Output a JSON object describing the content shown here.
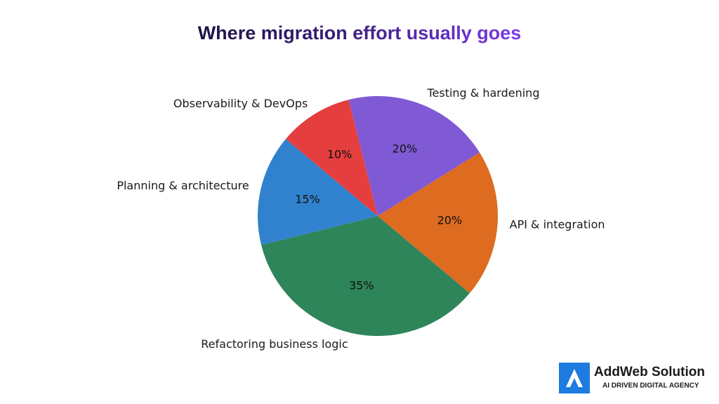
{
  "chart_data": {
    "type": "pie",
    "title": "Where migration effort usually goes",
    "categories": [
      "Planning & architecture",
      "Refactoring business logic",
      "API & integration",
      "Testing & hardening",
      "Observability & DevOps"
    ],
    "values": [
      15,
      35,
      20,
      20,
      10
    ],
    "value_labels": [
      "15%",
      "35%",
      "20%",
      "20%",
      "10%"
    ],
    "colors": [
      "#3182ce",
      "#2f855a",
      "#dd6b20",
      "#805ad5",
      "#e53e3e"
    ]
  },
  "branding": {
    "name": "AddWeb Solution",
    "tagline": "AI DRIVEN DIGITAL AGENCY"
  }
}
